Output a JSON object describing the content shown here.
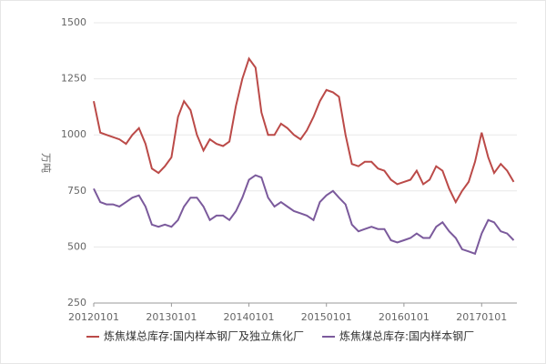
{
  "chart_data": {
    "type": "line",
    "y_label": "万吨",
    "x": [
      "20120101",
      "20120201",
      "20120301",
      "20120401",
      "20120501",
      "20120601",
      "20120701",
      "20120801",
      "20120901",
      "20121001",
      "20121101",
      "20121201",
      "20130101",
      "20130201",
      "20130301",
      "20130401",
      "20130501",
      "20130601",
      "20130701",
      "20130801",
      "20130901",
      "20131001",
      "20131101",
      "20131201",
      "20140101",
      "20140201",
      "20140301",
      "20140401",
      "20140501",
      "20140601",
      "20140701",
      "20140801",
      "20140901",
      "20141001",
      "20141101",
      "20141201",
      "20150101",
      "20150201",
      "20150301",
      "20150401",
      "20150501",
      "20150601",
      "20150701",
      "20150801",
      "20150901",
      "20151001",
      "20151101",
      "20151201",
      "20160101",
      "20160201",
      "20160301",
      "20160401",
      "20160501",
      "20160601",
      "20160701",
      "20160801",
      "20160901",
      "20161001",
      "20161101",
      "20161201",
      "20170101",
      "20170201",
      "20170301",
      "20170401",
      "20170501",
      "20170601"
    ],
    "series": [
      {
        "name": "炼焦煤总库存:国内样本钢厂及独立焦化厂",
        "color": "#bb4a48",
        "values": [
          1150,
          1010,
          1000,
          990,
          980,
          960,
          1000,
          1030,
          960,
          850,
          830,
          860,
          900,
          1080,
          1150,
          1110,
          1000,
          930,
          980,
          960,
          950,
          970,
          1130,
          1250,
          1340,
          1300,
          1100,
          1000,
          1000,
          1050,
          1030,
          1000,
          980,
          1020,
          1080,
          1150,
          1200,
          1190,
          1170,
          1000,
          870,
          860,
          880,
          880,
          850,
          840,
          800,
          780,
          790,
          800,
          840,
          780,
          800,
          860,
          840,
          760,
          700,
          750,
          790,
          880,
          1010,
          900,
          830,
          870,
          840,
          790
        ]
      },
      {
        "name": "炼焦煤总库存:国内样本钢厂",
        "color": "#7b5a9c",
        "values": [
          760,
          700,
          690,
          690,
          680,
          700,
          720,
          730,
          680,
          600,
          590,
          600,
          590,
          620,
          680,
          720,
          720,
          680,
          620,
          640,
          640,
          620,
          660,
          720,
          800,
          820,
          810,
          720,
          680,
          700,
          680,
          660,
          650,
          640,
          620,
          700,
          730,
          750,
          720,
          690,
          600,
          570,
          580,
          590,
          580,
          580,
          530,
          520,
          530,
          540,
          560,
          540,
          540,
          590,
          610,
          570,
          540,
          490,
          480,
          470,
          560,
          620,
          610,
          570,
          560,
          530
        ]
      }
    ],
    "xticks": [
      "20120101",
      "20130101",
      "20140101",
      "20150101",
      "20160101",
      "20170101"
    ],
    "ylim": [
      250,
      1500
    ],
    "yticks": [
      250,
      500,
      750,
      1000,
      1250,
      1500
    ],
    "grid": true
  }
}
